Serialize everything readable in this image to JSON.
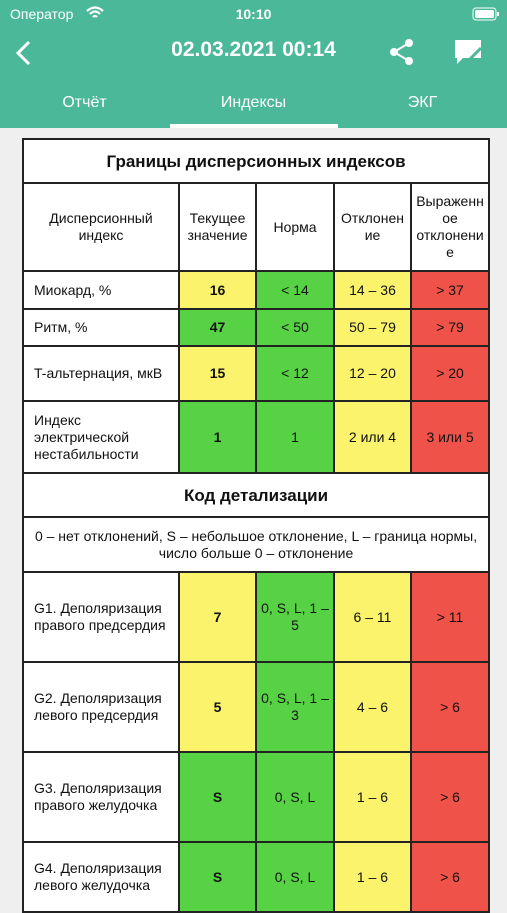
{
  "status_bar": {
    "carrier": "Оператор",
    "time": "10:10"
  },
  "header": {
    "title": "02.03.2021 00:14"
  },
  "tabs": [
    "Отчёт",
    "Индексы",
    "ЭКГ"
  ],
  "table": {
    "title": "Границы дисперсионных индексов",
    "columns": [
      "Дисперсионный индекс",
      "Текущее значение",
      "Норма",
      "Отклонение",
      "Выраженное отклонение"
    ],
    "rows": [
      [
        "Миокард, %",
        "16",
        "< 14",
        "14 – 36",
        "> 37"
      ],
      [
        "Ритм, %",
        "47",
        "< 50",
        "50 – 79",
        "> 79"
      ],
      [
        "T-альтернация, мкВ",
        "15",
        "< 12",
        "12 – 20",
        "> 20"
      ],
      [
        "Индекс электрической нестабильности",
        "1",
        "1",
        "2 или 4",
        "3 или 5"
      ]
    ],
    "section_title": "Код детализации",
    "note": "0 – нет отклонений, S – небольшое отклонение, L – граница нормы, число больше 0 – отклонение",
    "detail_rows": [
      [
        "G1. Деполяризация правого предсердия",
        "7",
        "0, S, L, 1 – 5",
        "6 – 11",
        "> 11"
      ],
      [
        "G2. Деполяризация левого предсердия",
        "5",
        "0, S, L, 1 – 3",
        "4 – 6",
        "> 6"
      ],
      [
        "G3. Деполяризация правого желудочка",
        "S",
        "0, S, L",
        "1 – 6",
        "> 6"
      ],
      [
        "G4. Деполяризация левого желудочка",
        "S",
        "0, S, L",
        "1 – 6",
        "> 6"
      ]
    ]
  }
}
